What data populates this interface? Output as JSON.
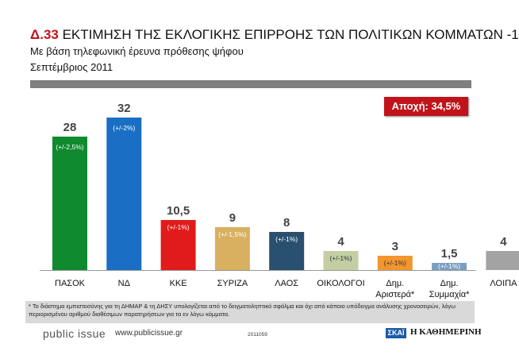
{
  "header": {
    "number": "Δ.33",
    "title": "ΕΚΤΙΜΗΣΗ ΤΗΣ ΕΚΛΟΓΙΚΗΣ ΕΠΙΡΡΟΗΣ ΤΩΝ ΠΟΛΙΤΙΚΩΝ ΚΟΜΜΑΤΩΝ -1",
    "subtitle": "Με βάση τηλεφωνική έρευνα πρόθεσης ψήφου",
    "date": "Σεπτέμβριος 2011"
  },
  "abstention": "Αποχή: 34,5%",
  "chart_data": {
    "type": "bar",
    "title": "ΕΚΤΙΜΗΣΗ ΤΗΣ ΕΚΛΟΓΙΚΗΣ ΕΠΙΡΡΟΗΣ ΤΩΝ ΠΟΛΙΤΙΚΩΝ ΚΟΜΜΑΤΩΝ -1",
    "ylim": [
      0,
      32
    ],
    "categories": [
      "ΠΑΣΟΚ",
      "ΝΔ",
      "ΚΚΕ",
      "ΣΥΡΙΖΑ",
      "ΛΑΟΣ",
      "ΟΙΚΟΛΟΓΟΙ",
      "Δημ. Αριστερά*",
      "Δημ. Συμμαχία*",
      "ΛΟΙΠΑ"
    ],
    "label_lines": [
      [
        "ΠΑΣΟΚ"
      ],
      [
        "ΝΔ"
      ],
      [
        "ΚΚΕ"
      ],
      [
        "ΣΥΡΙΖΑ"
      ],
      [
        "ΛΑΟΣ"
      ],
      [
        "ΟΙΚΟΛΟΓΟΙ"
      ],
      [
        "Δημ.",
        "Αριστερά*"
      ],
      [
        "Δημ.",
        "Συμμαχία*"
      ],
      [
        "ΛΟΙΠΑ"
      ]
    ],
    "values": [
      28,
      32,
      10.5,
      9,
      8,
      4,
      3,
      1.5,
      4
    ],
    "value_labels": [
      "28",
      "32",
      "10,5",
      "9",
      "8",
      "4",
      "3",
      "1,5",
      "4"
    ],
    "margins": [
      "(+/-2,5%)",
      "(+/-2%)",
      "(+/-1%)",
      "(+/-1,5%)",
      "(+/-1%)",
      "(+/-1%)",
      "(+/-1%)",
      "(+/-1%)",
      ""
    ],
    "colors": [
      "#0f8a2e",
      "#1a6fc4",
      "#e11b1b",
      "#d9b05f",
      "#29506e",
      "#c3cfa3",
      "#f2962d",
      "#7a9ec2",
      "#a3a3a3"
    ],
    "margin_text_colors": [
      "#ffffff",
      "#ffffff",
      "#ffffff",
      "#ffffff",
      "#ffffff",
      "#333333",
      "#333333",
      "#ffffff",
      "#ffffff"
    ]
  },
  "footnote": "* Το διάστημα εμπιστοσύνης για τη ΔΗΜΑΡ & τη ΔΗΣΥ υπολογίζεται από το δειγματοληπτικό σφάλμα και όχι από κάποιο υπόδειγμα ανάλυσης χρονοσειρών, λόγω περιορισμένου αριθμού διαθέσιμων παρατηρήσεων για τα εν λόγω κόμματα.",
  "footer": {
    "brand": "public issue",
    "website": "www.publicissue.gr",
    "code": "2011059",
    "skai": "ΣΚΑΪ",
    "kathimerini": "Η ΚΑΘΗΜΕΡΙΝΗ"
  }
}
